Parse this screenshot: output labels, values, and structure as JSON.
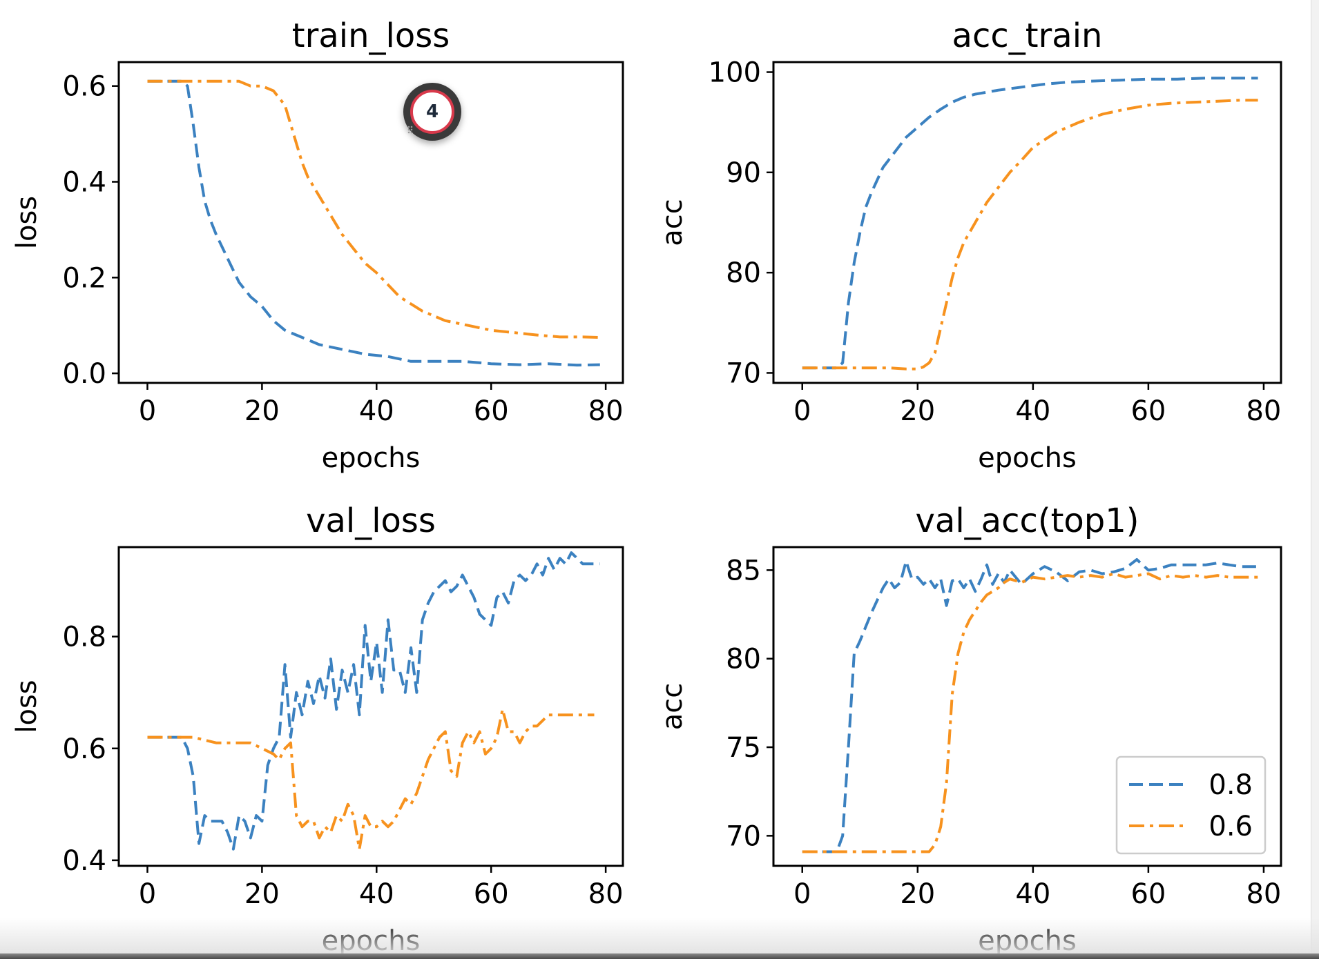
{
  "colors": {
    "series_blue": "#3b81c0",
    "series_orange": "#f7921e",
    "axis": "#000000"
  },
  "overlay": {
    "badge_number": "4",
    "badge_icon": "step-counter-icon"
  },
  "legend": {
    "entries": [
      "0.8",
      "0.6"
    ],
    "placement": "lower-right",
    "panel": "val_acc(top1)"
  },
  "chart_data": [
    {
      "type": "line",
      "title": "train_loss",
      "xlabel": "epochs",
      "ylabel": "loss",
      "xlim": [
        -5,
        83
      ],
      "ylim": [
        -0.02,
        0.65
      ],
      "xticks": [
        0,
        20,
        40,
        60,
        80
      ],
      "yticks": [
        0.0,
        0.2,
        0.4,
        0.6
      ],
      "ytick_labels": [
        "0.0",
        "0.2",
        "0.4",
        "0.6"
      ],
      "grid": false,
      "series": [
        {
          "name": "0.8",
          "style": "dashed",
          "x": [
            0,
            2,
            4,
            6,
            7,
            8,
            9,
            10,
            11,
            12,
            14,
            16,
            18,
            20,
            22,
            24,
            26,
            28,
            30,
            34,
            38,
            42,
            46,
            50,
            55,
            60,
            65,
            70,
            75,
            79
          ],
          "y": [
            0.61,
            0.61,
            0.61,
            0.61,
            0.6,
            0.52,
            0.43,
            0.36,
            0.32,
            0.29,
            0.24,
            0.19,
            0.16,
            0.14,
            0.11,
            0.09,
            0.08,
            0.07,
            0.06,
            0.05,
            0.04,
            0.035,
            0.025,
            0.025,
            0.025,
            0.02,
            0.018,
            0.02,
            0.017,
            0.018
          ]
        },
        {
          "name": "0.6",
          "style": "dashdot",
          "x": [
            0,
            4,
            8,
            12,
            16,
            18,
            20,
            22,
            24,
            25,
            26,
            27,
            28,
            30,
            32,
            34,
            36,
            38,
            40,
            44,
            48,
            52,
            56,
            60,
            64,
            68,
            72,
            76,
            79
          ],
          "y": [
            0.61,
            0.61,
            0.61,
            0.61,
            0.61,
            0.6,
            0.6,
            0.59,
            0.56,
            0.52,
            0.48,
            0.44,
            0.41,
            0.37,
            0.33,
            0.29,
            0.26,
            0.23,
            0.21,
            0.16,
            0.13,
            0.11,
            0.1,
            0.09,
            0.085,
            0.08,
            0.076,
            0.076,
            0.075
          ]
        }
      ]
    },
    {
      "type": "line",
      "title": "acc_train",
      "xlabel": "epochs",
      "ylabel": "acc",
      "xlim": [
        -5,
        83
      ],
      "ylim": [
        69,
        101
      ],
      "xticks": [
        0,
        20,
        40,
        60,
        80
      ],
      "yticks": [
        70,
        80,
        90,
        100
      ],
      "ytick_labels": [
        "70",
        "80",
        "90",
        "100"
      ],
      "grid": false,
      "series": [
        {
          "name": "0.8",
          "style": "dashed",
          "x": [
            0,
            4,
            6,
            7,
            8,
            9,
            10,
            11,
            12,
            14,
            16,
            18,
            20,
            22,
            24,
            26,
            28,
            30,
            34,
            38,
            42,
            46,
            50,
            55,
            60,
            65,
            70,
            75,
            79
          ],
          "y": [
            70.5,
            70.5,
            70.5,
            71.0,
            77.0,
            81.0,
            84.0,
            86.5,
            88.0,
            90.5,
            92.0,
            93.5,
            94.5,
            95.5,
            96.3,
            97.0,
            97.5,
            97.8,
            98.2,
            98.5,
            98.8,
            99.0,
            99.1,
            99.2,
            99.3,
            99.3,
            99.4,
            99.4,
            99.4
          ]
        },
        {
          "name": "0.6",
          "style": "dashdot",
          "x": [
            0,
            5,
            10,
            15,
            18,
            20,
            21,
            22,
            23,
            24,
            25,
            26,
            27,
            28,
            30,
            32,
            34,
            36,
            38,
            40,
            44,
            48,
            52,
            56,
            60,
            64,
            68,
            72,
            76,
            79
          ],
          "y": [
            70.5,
            70.5,
            70.5,
            70.5,
            70.4,
            70.4,
            70.6,
            71.0,
            72.0,
            74.5,
            77.0,
            79.5,
            81.5,
            83.0,
            85.0,
            87.0,
            88.5,
            90.0,
            91.2,
            92.5,
            94.0,
            95.0,
            95.8,
            96.3,
            96.7,
            96.9,
            97.0,
            97.1,
            97.2,
            97.2
          ]
        }
      ]
    },
    {
      "type": "line",
      "title": "val_loss",
      "xlabel": "epochs",
      "ylabel": "loss",
      "xlim": [
        -5,
        83
      ],
      "ylim": [
        0.39,
        0.96
      ],
      "xticks": [
        0,
        20,
        40,
        60,
        80
      ],
      "yticks": [
        0.4,
        0.6,
        0.8
      ],
      "ytick_labels": [
        "0.4",
        "0.6",
        "0.8"
      ],
      "grid": false,
      "series": [
        {
          "name": "0.8",
          "style": "dashed",
          "x": [
            0,
            2,
            4,
            6,
            7,
            8,
            9,
            10,
            11,
            12,
            13,
            14,
            15,
            16,
            17,
            18,
            19,
            20,
            21,
            22,
            23,
            24,
            25,
            26,
            27,
            28,
            29,
            30,
            31,
            32,
            33,
            34,
            35,
            36,
            37,
            38,
            39,
            40,
            41,
            42,
            43,
            44,
            45,
            46,
            47,
            48,
            49,
            50,
            51,
            52,
            53,
            54,
            55,
            56,
            57,
            58,
            59,
            60,
            61,
            62,
            63,
            64,
            65,
            66,
            67,
            68,
            69,
            70,
            71,
            72,
            73,
            74,
            75,
            76,
            77,
            78,
            79
          ],
          "y": [
            0.62,
            0.62,
            0.62,
            0.62,
            0.6,
            0.55,
            0.43,
            0.48,
            0.47,
            0.47,
            0.47,
            0.45,
            0.42,
            0.48,
            0.47,
            0.44,
            0.48,
            0.47,
            0.57,
            0.6,
            0.62,
            0.75,
            0.62,
            0.7,
            0.66,
            0.72,
            0.68,
            0.73,
            0.69,
            0.76,
            0.67,
            0.74,
            0.7,
            0.75,
            0.66,
            0.82,
            0.72,
            0.79,
            0.7,
            0.83,
            0.74,
            0.74,
            0.7,
            0.78,
            0.7,
            0.83,
            0.86,
            0.88,
            0.89,
            0.9,
            0.88,
            0.89,
            0.91,
            0.89,
            0.87,
            0.84,
            0.83,
            0.82,
            0.87,
            0.88,
            0.86,
            0.9,
            0.91,
            0.9,
            0.91,
            0.93,
            0.91,
            0.94,
            0.92,
            0.94,
            0.93,
            0.95,
            0.94,
            0.93,
            0.93,
            0.93,
            0.93
          ]
        },
        {
          "name": "0.6",
          "style": "dashdot",
          "x": [
            0,
            4,
            8,
            12,
            16,
            18,
            20,
            22,
            23,
            24,
            25,
            26,
            27,
            28,
            29,
            30,
            31,
            32,
            33,
            34,
            35,
            36,
            37,
            38,
            39,
            40,
            41,
            42,
            43,
            44,
            45,
            46,
            47,
            48,
            49,
            50,
            51,
            52,
            53,
            54,
            55,
            56,
            57,
            58,
            59,
            60,
            61,
            62,
            63,
            64,
            65,
            66,
            67,
            68,
            69,
            70,
            72,
            74,
            76,
            78
          ],
          "y": [
            0.62,
            0.62,
            0.62,
            0.61,
            0.61,
            0.61,
            0.6,
            0.59,
            0.58,
            0.6,
            0.61,
            0.48,
            0.46,
            0.47,
            0.47,
            0.44,
            0.46,
            0.45,
            0.48,
            0.47,
            0.5,
            0.48,
            0.42,
            0.48,
            0.46,
            0.46,
            0.47,
            0.46,
            0.47,
            0.49,
            0.51,
            0.5,
            0.52,
            0.55,
            0.58,
            0.6,
            0.62,
            0.63,
            0.56,
            0.55,
            0.61,
            0.63,
            0.61,
            0.63,
            0.59,
            0.6,
            0.62,
            0.67,
            0.63,
            0.63,
            0.61,
            0.63,
            0.64,
            0.64,
            0.65,
            0.66,
            0.66,
            0.66,
            0.66,
            0.66
          ]
        }
      ]
    },
    {
      "type": "line",
      "title": "val_acc(top1)",
      "xlabel": "epochs",
      "ylabel": "acc",
      "xlim": [
        -5,
        83
      ],
      "ylim": [
        68.3,
        86.3
      ],
      "xticks": [
        0,
        20,
        40,
        60,
        80
      ],
      "yticks": [
        70,
        75,
        80,
        85
      ],
      "ytick_labels": [
        "70",
        "75",
        "80",
        "85"
      ],
      "grid": false,
      "legend": "lower right",
      "series": [
        {
          "name": "0.8",
          "style": "dashed",
          "x": [
            0,
            4,
            6,
            7,
            8,
            9,
            10,
            11,
            12,
            13,
            14,
            15,
            16,
            17,
            18,
            19,
            20,
            21,
            22,
            23,
            24,
            25,
            26,
            27,
            28,
            29,
            30,
            31,
            32,
            33,
            34,
            35,
            36,
            37,
            38,
            40,
            42,
            44,
            46,
            48,
            50,
            52,
            54,
            56,
            58,
            60,
            62,
            64,
            66,
            68,
            70,
            72,
            74,
            76,
            79
          ],
          "y": [
            69.1,
            69.1,
            69.1,
            70.0,
            75.0,
            80.3,
            81.0,
            81.8,
            82.6,
            83.3,
            84.0,
            84.5,
            84.0,
            84.3,
            85.5,
            84.5,
            84.6,
            84.2,
            84.5,
            84.0,
            84.5,
            83.0,
            84.4,
            84.5,
            84.0,
            84.5,
            83.8,
            84.5,
            85.3,
            84.2,
            84.8,
            84.3,
            85.0,
            84.6,
            84.2,
            84.8,
            85.2,
            84.9,
            84.4,
            84.9,
            85.0,
            84.8,
            84.9,
            85.1,
            85.6,
            85.0,
            85.1,
            85.3,
            85.3,
            85.3,
            85.3,
            85.4,
            85.3,
            85.2,
            85.2
          ]
        },
        {
          "name": "0.6",
          "style": "dashdot",
          "x": [
            0,
            5,
            10,
            15,
            20,
            22,
            23,
            24,
            25,
            26,
            27,
            28,
            29,
            30,
            31,
            32,
            33,
            34,
            35,
            36,
            38,
            40,
            42,
            44,
            46,
            48,
            50,
            52,
            54,
            56,
            58,
            60,
            62,
            64,
            66,
            68,
            70,
            72,
            74,
            76,
            79
          ],
          "y": [
            69.1,
            69.1,
            69.1,
            69.1,
            69.1,
            69.1,
            69.5,
            70.5,
            73.0,
            78.0,
            80.3,
            81.5,
            82.2,
            82.7,
            83.2,
            83.6,
            83.8,
            84.0,
            84.3,
            84.5,
            84.3,
            84.6,
            84.5,
            84.6,
            84.7,
            84.6,
            84.7,
            84.6,
            84.8,
            84.6,
            84.7,
            84.8,
            84.5,
            84.7,
            84.6,
            84.7,
            84.6,
            84.7,
            84.6,
            84.6,
            84.6
          ]
        }
      ]
    }
  ]
}
